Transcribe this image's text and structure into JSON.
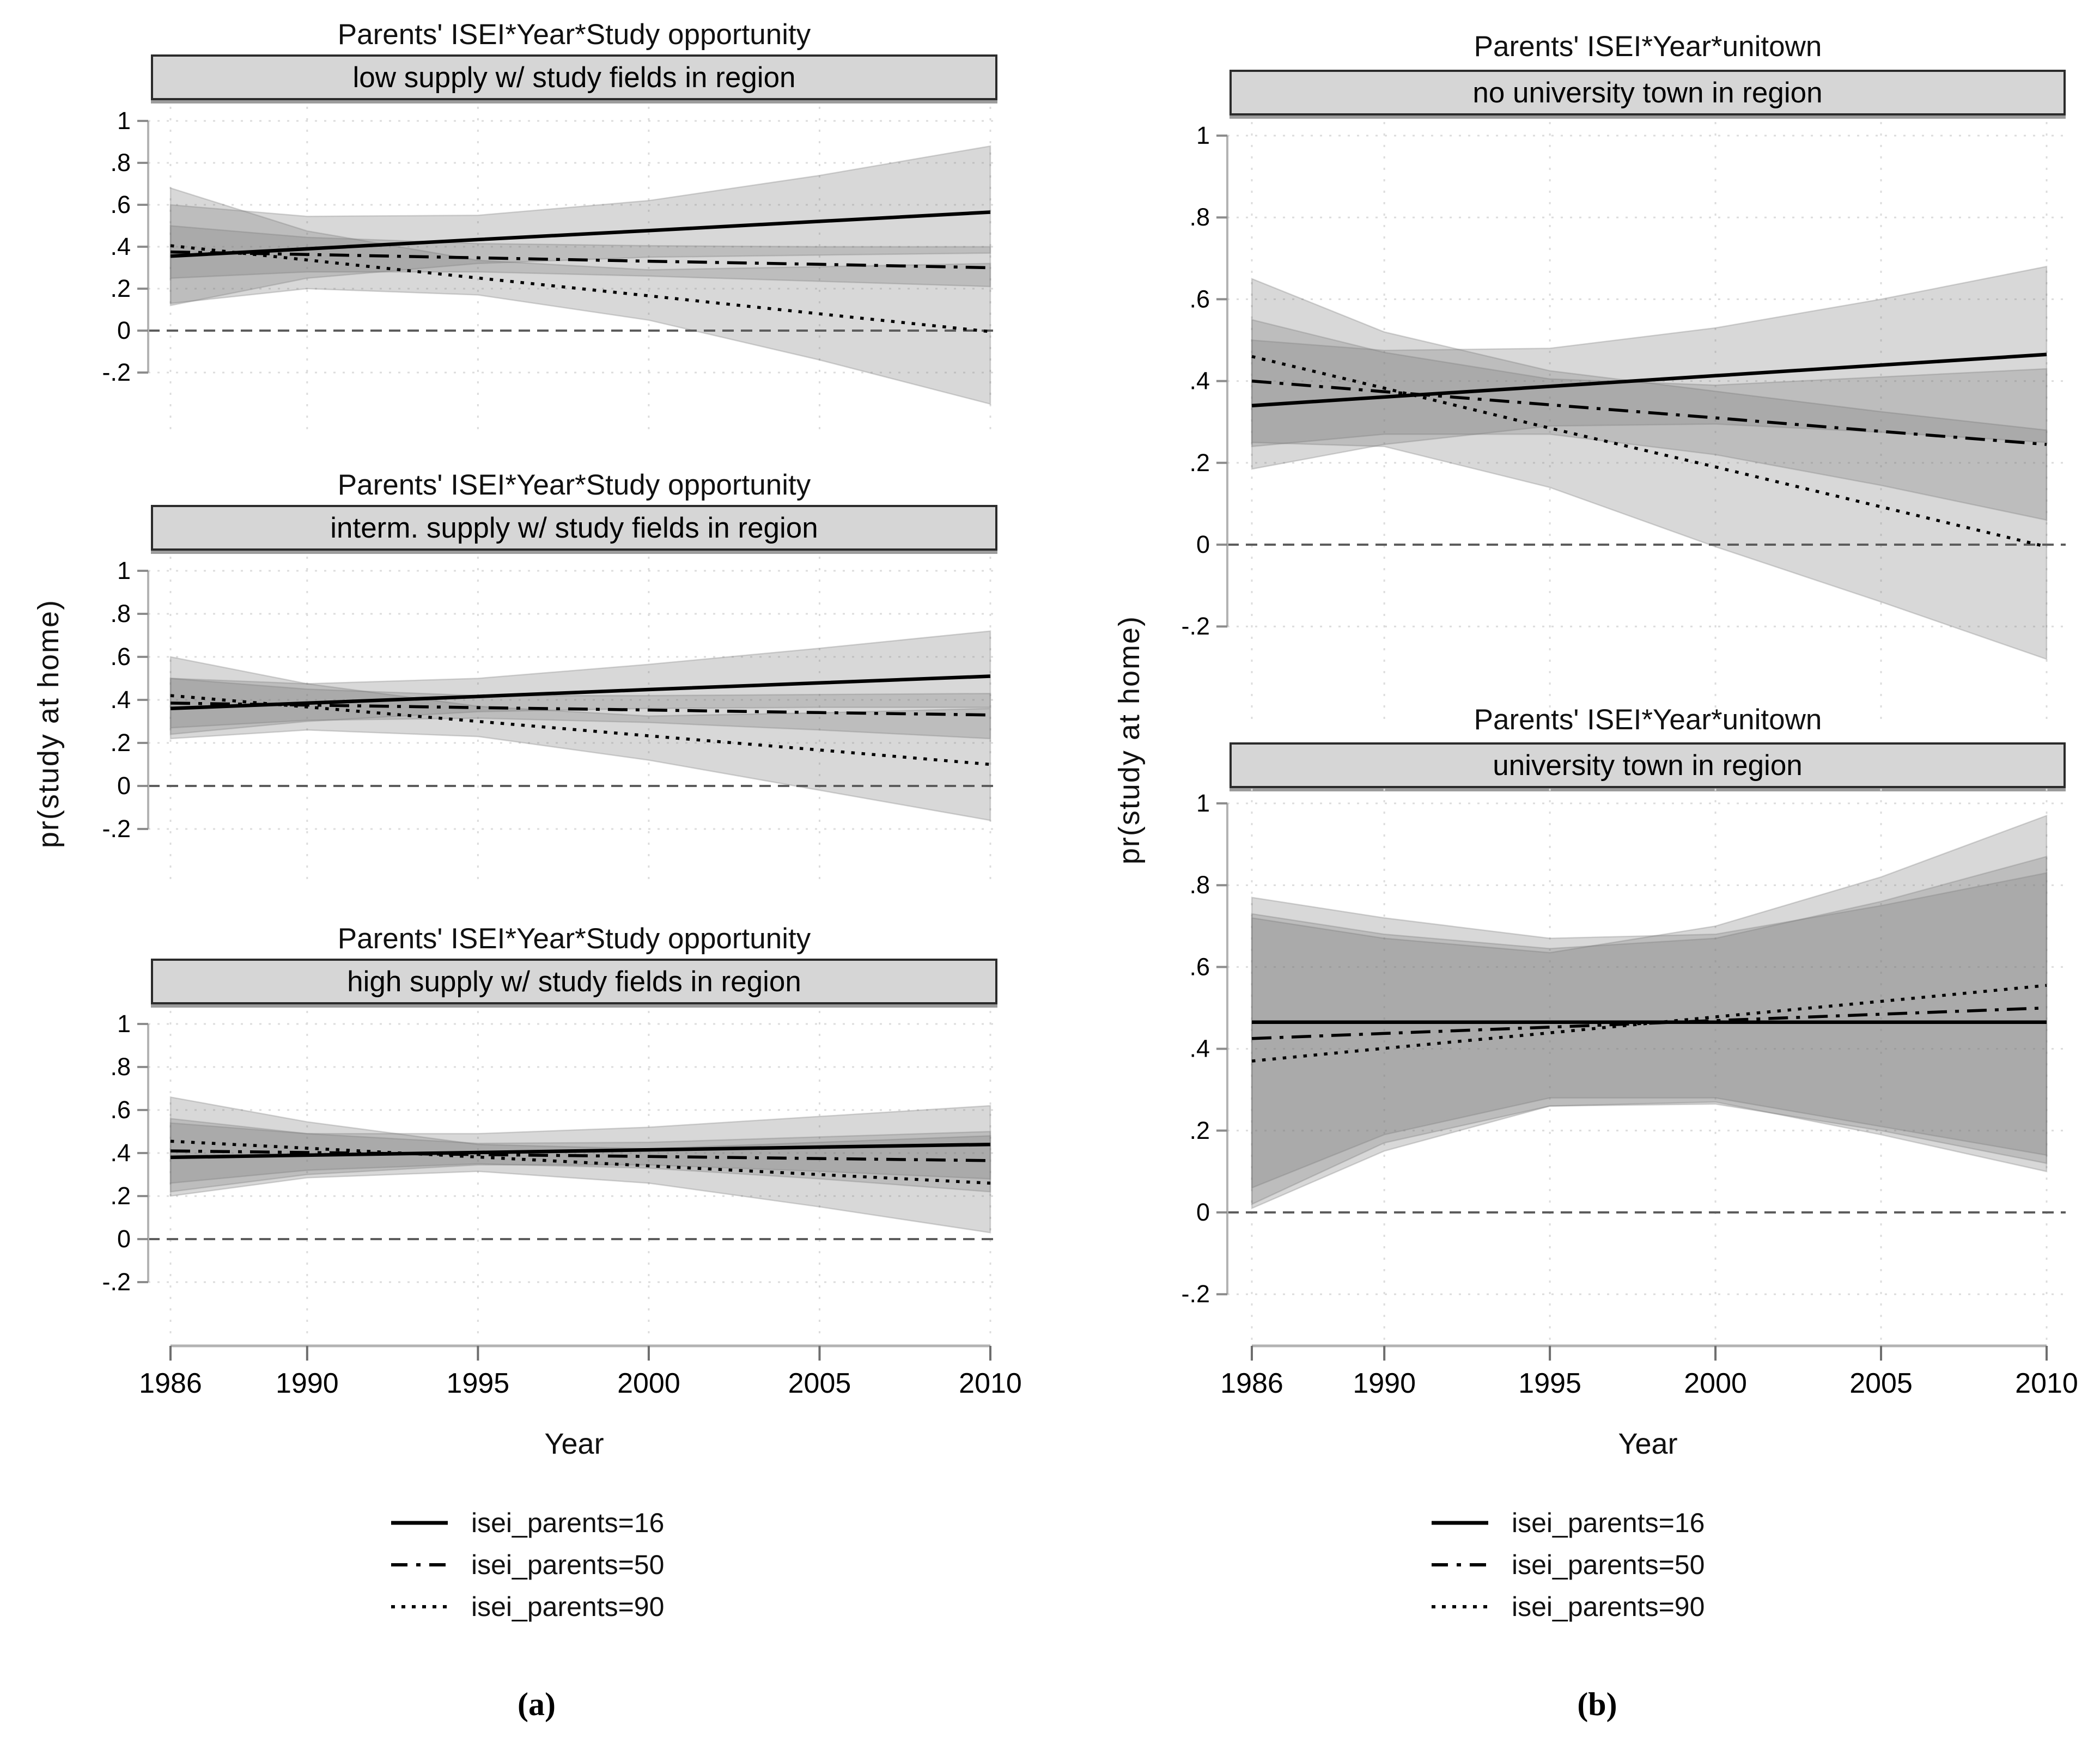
{
  "figure": {
    "axes": {
      "ylabel": "pr(study at home)",
      "xlabel": "Year",
      "ytick_labels": [
        "1",
        ".8",
        ".6",
        ".4",
        ".2",
        "0",
        "-.2"
      ],
      "ytick_values": [
        1,
        0.8,
        0.6,
        0.4,
        0.2,
        0,
        -0.2
      ],
      "xtick_labels": [
        "1986",
        "1990",
        "1995",
        "2000",
        "2005",
        "2010"
      ],
      "xtick_values": [
        1986,
        1990,
        1995,
        2000,
        2005,
        2010
      ],
      "xlim": [
        1986,
        2010
      ],
      "ylim": [
        -0.2,
        1
      ],
      "grid": "dotted"
    },
    "legend": {
      "position": "bottom",
      "items": [
        {
          "label": "isei_parents=16",
          "style": "solid"
        },
        {
          "label": "isei_parents=50",
          "style": "dashdot"
        },
        {
          "label": "isei_parents=90",
          "style": "dotted"
        }
      ]
    },
    "sublabels": {
      "a": "(a)",
      "b": "(b)"
    },
    "colors": {
      "band": "#c9c9c9",
      "line": "#000000",
      "subtitle_box_fill": "#d6d6d6",
      "subtitle_box_border": "#2b2b2b",
      "grid": "#dcdcdc",
      "axis": "#b3b3b3",
      "zero_line": "#5c5c5c",
      "text": "#000000"
    }
  },
  "chart_data": [
    {
      "type": "line",
      "title": "Parents' ISEI*Year*Study opportunity",
      "subtitle": "low supply w/ study fields in region",
      "x": [
        1986,
        1990,
        1995,
        2000,
        2005,
        2010
      ],
      "ref_line_y": 0,
      "series": [
        {
          "name": "isei_parents=16",
          "style": "solid",
          "y": [
            0.355,
            0.39,
            0.434,
            0.477,
            0.521,
            0.565
          ],
          "ci_lo": [
            0.12,
            0.25,
            0.32,
            0.35,
            0.36,
            0.37
          ],
          "ci_hi": [
            0.6,
            0.545,
            0.55,
            0.62,
            0.74,
            0.88
          ]
        },
        {
          "name": "isei_parents=50",
          "style": "dashdot",
          "y": [
            0.375,
            0.363,
            0.347,
            0.331,
            0.316,
            0.3
          ],
          "ci_lo": [
            0.25,
            0.28,
            0.28,
            0.26,
            0.235,
            0.21
          ],
          "ci_hi": [
            0.5,
            0.445,
            0.415,
            0.405,
            0.4,
            0.4
          ]
        },
        {
          "name": "isei_parents=90",
          "style": "dotted",
          "y": [
            0.405,
            0.337,
            0.251,
            0.166,
            0.08,
            -0.005
          ],
          "ci_lo": [
            0.13,
            0.2,
            0.17,
            0.05,
            -0.14,
            -0.35
          ],
          "ci_hi": [
            0.68,
            0.475,
            0.335,
            0.29,
            0.305,
            0.32
          ]
        }
      ]
    },
    {
      "type": "line",
      "title": "Parents' ISEI*Year*Study opportunity",
      "subtitle": "interm. supply w/ study fields in region",
      "x": [
        1986,
        1990,
        1995,
        2000,
        2005,
        2010
      ],
      "ref_line_y": 0,
      "series": [
        {
          "name": "isei_parents=16",
          "style": "solid",
          "y": [
            0.36,
            0.385,
            0.416,
            0.448,
            0.479,
            0.51
          ],
          "ci_lo": [
            0.24,
            0.3,
            0.345,
            0.36,
            0.365,
            0.365
          ],
          "ci_hi": [
            0.5,
            0.475,
            0.5,
            0.565,
            0.64,
            0.72
          ]
        },
        {
          "name": "isei_parents=50",
          "style": "dashdot",
          "y": [
            0.385,
            0.376,
            0.364,
            0.353,
            0.341,
            0.33
          ],
          "ci_lo": [
            0.27,
            0.305,
            0.315,
            0.295,
            0.26,
            0.22
          ],
          "ci_hi": [
            0.5,
            0.45,
            0.42,
            0.42,
            0.425,
            0.43
          ]
        },
        {
          "name": "isei_parents=90",
          "style": "dotted",
          "y": [
            0.42,
            0.367,
            0.3,
            0.233,
            0.167,
            0.1
          ],
          "ci_lo": [
            0.22,
            0.26,
            0.23,
            0.12,
            -0.02,
            -0.16
          ],
          "ci_hi": [
            0.6,
            0.475,
            0.37,
            0.325,
            0.34,
            0.36
          ]
        }
      ]
    },
    {
      "type": "line",
      "title": "Parents' ISEI*Year*Study opportunity",
      "subtitle": "high supply w/ study fields in region",
      "x": [
        1986,
        1990,
        1995,
        2000,
        2005,
        2010
      ],
      "ref_line_y": 0,
      "series": [
        {
          "name": "isei_parents=16",
          "style": "solid",
          "y": [
            0.38,
            0.39,
            0.4025,
            0.415,
            0.4275,
            0.44
          ],
          "ci_lo": [
            0.22,
            0.3,
            0.345,
            0.345,
            0.315,
            0.28
          ],
          "ci_hi": [
            0.54,
            0.49,
            0.49,
            0.52,
            0.57,
            0.62
          ]
        },
        {
          "name": "isei_parents=50",
          "style": "dashdot",
          "y": [
            0.41,
            0.4025,
            0.393,
            0.384,
            0.3745,
            0.365
          ],
          "ci_lo": [
            0.26,
            0.32,
            0.35,
            0.33,
            0.28,
            0.22
          ],
          "ci_hi": [
            0.56,
            0.49,
            0.445,
            0.45,
            0.475,
            0.5
          ]
        },
        {
          "name": "isei_parents=90",
          "style": "dotted",
          "y": [
            0.455,
            0.4225,
            0.3815,
            0.3405,
            0.3,
            0.26
          ],
          "ci_lo": [
            0.2,
            0.285,
            0.315,
            0.26,
            0.15,
            0.03
          ],
          "ci_hi": [
            0.66,
            0.545,
            0.44,
            0.42,
            0.45,
            0.48
          ]
        }
      ]
    },
    {
      "type": "line",
      "title": "Parents' ISEI*Year*unitown",
      "subtitle": "no university town in region",
      "x": [
        1986,
        1990,
        1995,
        2000,
        2005,
        2010
      ],
      "ref_line_y": 0,
      "series": [
        {
          "name": "isei_parents=16",
          "style": "solid",
          "y": [
            0.34,
            0.361,
            0.387,
            0.413,
            0.439,
            0.465
          ],
          "ci_lo": [
            0.185,
            0.245,
            0.29,
            0.295,
            0.275,
            0.25
          ],
          "ci_hi": [
            0.5,
            0.475,
            0.48,
            0.53,
            0.6,
            0.68
          ]
        },
        {
          "name": "isei_parents=50",
          "style": "dashdot",
          "y": [
            0.4,
            0.374,
            0.342,
            0.31,
            0.277,
            0.245
          ],
          "ci_lo": [
            0.24,
            0.27,
            0.27,
            0.22,
            0.145,
            0.06
          ],
          "ci_hi": [
            0.55,
            0.47,
            0.405,
            0.39,
            0.41,
            0.43
          ]
        },
        {
          "name": "isei_parents=90",
          "style": "dotted",
          "y": [
            0.46,
            0.3825,
            0.285,
            0.19,
            0.0925,
            -0.005
          ],
          "ci_lo": [
            0.25,
            0.24,
            0.14,
            -0.005,
            -0.14,
            -0.28
          ],
          "ci_hi": [
            0.65,
            0.52,
            0.425,
            0.375,
            0.325,
            0.28
          ]
        }
      ]
    },
    {
      "type": "line",
      "title": "Parents' ISEI*Year*unitown",
      "subtitle": "university town in region",
      "x": [
        1986,
        1990,
        1995,
        2000,
        2005,
        2010
      ],
      "ref_line_y": 0,
      "series": [
        {
          "name": "isei_parents=16",
          "style": "solid",
          "y": [
            0.465,
            0.465,
            0.465,
            0.465,
            0.465,
            0.465
          ],
          "ci_lo": [
            0.01,
            0.15,
            0.26,
            0.27,
            0.19,
            0.1
          ],
          "ci_hi": [
            0.77,
            0.72,
            0.67,
            0.68,
            0.75,
            0.83
          ]
        },
        {
          "name": "isei_parents=50",
          "style": "dashdot",
          "y": [
            0.425,
            0.4375,
            0.453,
            0.469,
            0.4845,
            0.5
          ],
          "ci_lo": [
            0.06,
            0.19,
            0.28,
            0.28,
            0.21,
            0.14
          ],
          "ci_hi": [
            0.73,
            0.68,
            0.645,
            0.67,
            0.76,
            0.87
          ]
        },
        {
          "name": "isei_parents=90",
          "style": "dotted",
          "y": [
            0.37,
            0.401,
            0.439,
            0.478,
            0.516,
            0.555
          ],
          "ci_lo": [
            0.02,
            0.17,
            0.26,
            0.265,
            0.2,
            0.12
          ],
          "ci_hi": [
            0.72,
            0.67,
            0.635,
            0.7,
            0.82,
            0.97
          ]
        }
      ]
    }
  ]
}
